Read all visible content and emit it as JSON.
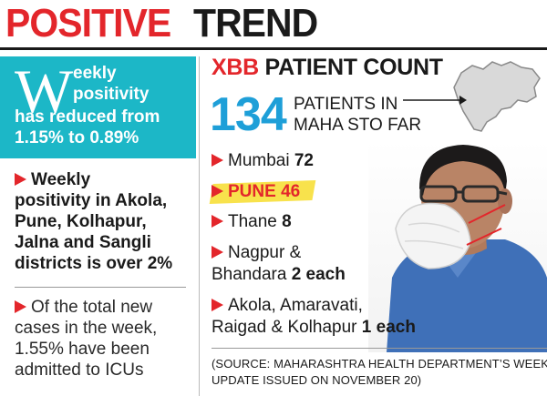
{
  "headline": {
    "part1": "POSITIVE",
    "part2": "TREND"
  },
  "left": {
    "teal_box": {
      "big_letter": "W",
      "line1": "eekly",
      "line2": "positivity",
      "line3": "has reduced from",
      "line4": "1.15% to 0.89%"
    },
    "bullet1": [
      "Weekly",
      "positivity in Akola,",
      "Pune, Kolhapur,",
      "Jalna and Sangli",
      "districts is over 2%"
    ],
    "bullet2": [
      "Of the total new",
      "cases in the week,",
      "1.55% have been",
      "admitted to ICUs"
    ]
  },
  "right": {
    "title_red": "XBB",
    "title_black": "PATIENT COUNT",
    "count": "134",
    "count_label_line1": "PATIENTS IN",
    "count_label_line2": "MAHA STO FAR",
    "items": [
      {
        "name": "Mumbai",
        "value": "72"
      },
      {
        "name": "PUNE",
        "value": "46"
      },
      {
        "name": "Thane",
        "value": "8"
      },
      {
        "name_line1": "Nagpur &",
        "name_line2": "Bhandara",
        "value": "2 each"
      },
      {
        "name_line1": "Akola, Amaravati,",
        "name_line2": "Raigad & Kolhapur",
        "value": "1 each"
      }
    ],
    "source_line1": "(SOURCE: MAHARASHTRA HEALTH DEPARTMENT’S WEEKLY",
    "source_line2": "UPDATE ISSUED ON NOVEMBER 20)"
  },
  "colors": {
    "accent_red": "#e3262b",
    "teal": "#1cb7c7",
    "count_blue": "#1e9fd8",
    "highlight_yellow": "#f8e24c"
  }
}
